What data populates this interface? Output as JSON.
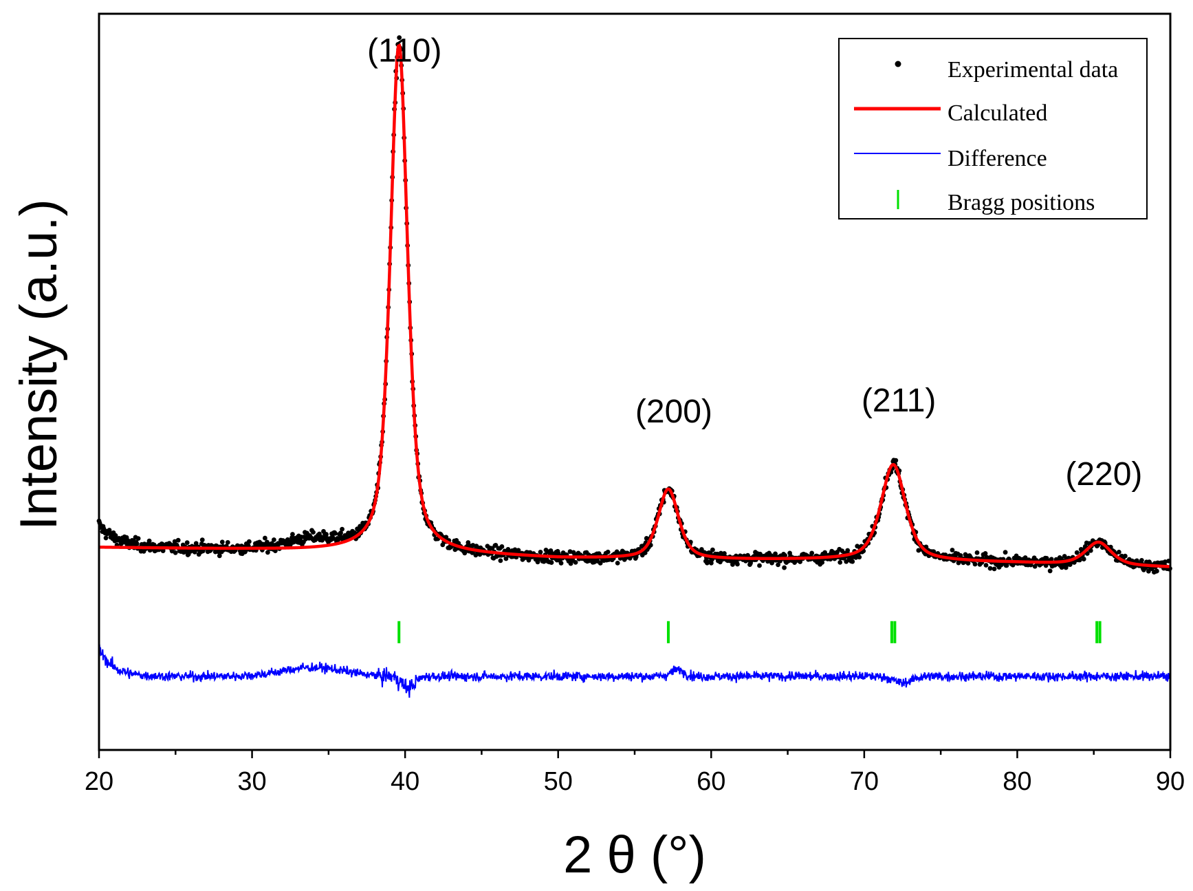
{
  "chart_data": {
    "type": "line",
    "title": "",
    "xlabel": "2 θ (°)",
    "ylabel": "Intensity (a.u.)",
    "xlim": [
      20,
      90
    ],
    "ylim": [
      0,
      100
    ],
    "x_ticks": [
      20,
      30,
      40,
      50,
      60,
      70,
      80,
      90
    ],
    "y_ticks_shown": false,
    "colors": {
      "experimental": "#000000",
      "calculated": "#ff0000",
      "difference": "#0000ff",
      "bragg": "#00e000"
    },
    "legend": {
      "placement": "top-right",
      "entries": [
        {
          "name": "Experimental data",
          "style": "dot",
          "color": "#000000"
        },
        {
          "name": "Calculated",
          "style": "line",
          "color": "#ff0000"
        },
        {
          "name": "Difference",
          "style": "line",
          "color": "#0000ff"
        },
        {
          "name": "Bragg positions",
          "style": "tick",
          "color": "#00e000"
        }
      ]
    },
    "peaks": [
      {
        "label": "(110)",
        "position": 39.6,
        "height": 69.0,
        "width": 1.35,
        "label_y": 93.5
      },
      {
        "label": "(200)",
        "position": 57.2,
        "height": 9.5,
        "width": 1.6,
        "label_y": 44.5
      },
      {
        "label": "(211)",
        "position": 71.9,
        "height": 13.0,
        "width": 1.9,
        "label_y": 46.0
      },
      {
        "label": "(220)",
        "position": 85.3,
        "height": 3.1,
        "width": 2.0,
        "label_y": 36.0
      }
    ],
    "background": [
      [
        20,
        27.5
      ],
      [
        30,
        27.2
      ],
      [
        40,
        26.8
      ],
      [
        50,
        26.0
      ],
      [
        60,
        25.8
      ],
      [
        70,
        25.8
      ],
      [
        80,
        25.4
      ],
      [
        90,
        24.8
      ]
    ],
    "bragg_positions": [
      39.6,
      57.2,
      71.8,
      72.0,
      85.2,
      85.4
    ],
    "bragg_y": [
      14.5,
      17.5
    ],
    "difference_baseline": 10.0,
    "difference_amplitude": 1.6
  }
}
